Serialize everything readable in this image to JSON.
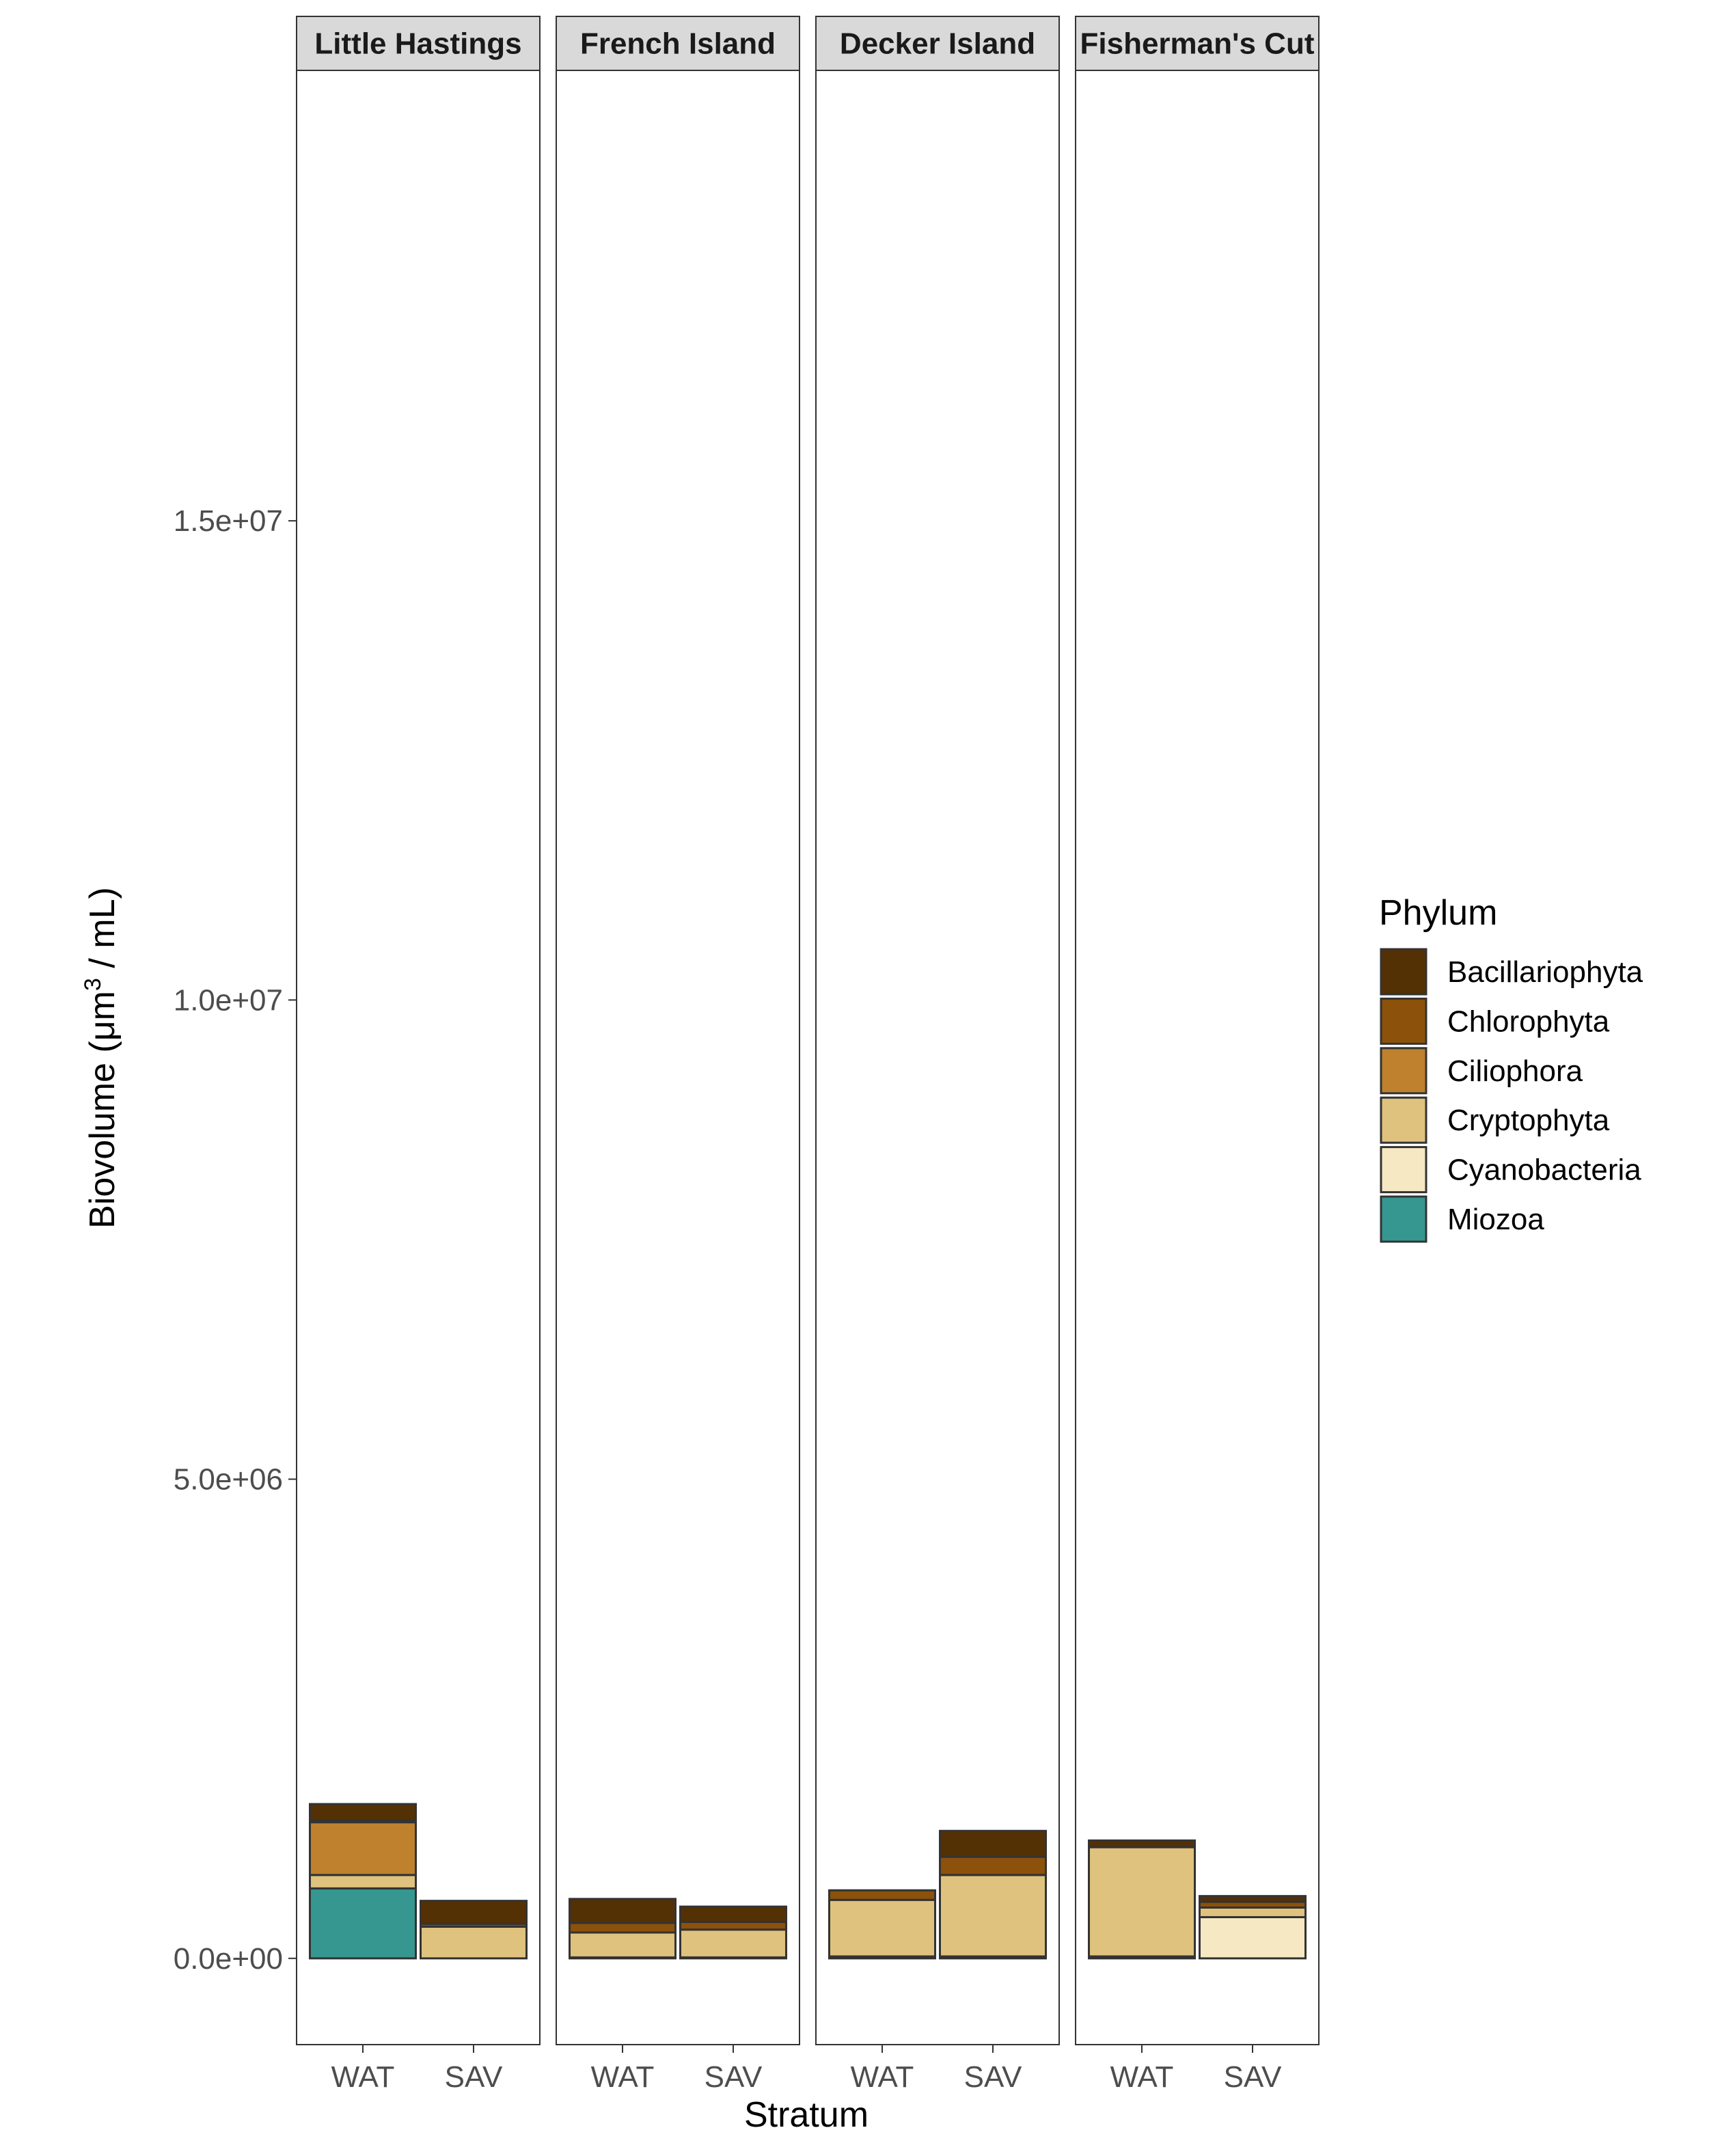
{
  "chart_data": {
    "type": "bar",
    "stacked": true,
    "facets": [
      "Little Hastings",
      "French Island",
      "Decker Island",
      "Fisherman's Cut"
    ],
    "categories": [
      "WAT",
      "SAV"
    ],
    "xlabel": "Stratum",
    "ylabel_main": "Biovolume (",
    "ylabel_mu": "μ",
    "ylabel_m": "m",
    "ylabel_sup": "3",
    "ylabel_tail": " / mL)",
    "ylim": [
      -900000,
      19700000
    ],
    "yticks": [
      0,
      5000000,
      10000000,
      15000000
    ],
    "ytick_labels": [
      "0.0e+00",
      "5.0e+06",
      "1.0e+07",
      "1.5e+07"
    ],
    "grid": false,
    "legend": {
      "title": "Phylum",
      "placement": "right",
      "entries": [
        "Bacillariophyta",
        "Chlorophyta",
        "Ciliophora",
        "Cryptophyta",
        "Cyanobacteria",
        "Miozoa"
      ]
    },
    "colors": {
      "Bacillariophyta": "#543005",
      "Chlorophyta": "#8c510a",
      "Ciliophora": "#bf812d",
      "Cryptophyta": "#dfc27d",
      "Cyanobacteria": "#f6e8c3",
      "Miozoa": "#35978f"
    },
    "bars": [
      {
        "facet": "Little Hastings",
        "stratum": "WAT",
        "segments": [
          {
            "phylum": "Miozoa",
            "value": 730000
          },
          {
            "phylum": "Cryptophyta",
            "value": 140000
          },
          {
            "phylum": "Ciliophora",
            "value": 550000
          },
          {
            "phylum": "Chlorophyta",
            "value": 20000
          },
          {
            "phylum": "Bacillariophyta",
            "value": 170000
          }
        ]
      },
      {
        "facet": "Little Hastings",
        "stratum": "SAV",
        "segments": [
          {
            "phylum": "Cryptophyta",
            "value": 330000
          },
          {
            "phylum": "Chlorophyta",
            "value": 30000
          },
          {
            "phylum": "Bacillariophyta",
            "value": 240000
          }
        ]
      },
      {
        "facet": "French Island",
        "stratum": "WAT",
        "segments": [
          {
            "phylum": "Cyanobacteria",
            "value": 10000
          },
          {
            "phylum": "Cryptophyta",
            "value": 260000
          },
          {
            "phylum": "Chlorophyta",
            "value": 100000
          },
          {
            "phylum": "Bacillariophyta",
            "value": 250000
          }
        ]
      },
      {
        "facet": "French Island",
        "stratum": "SAV",
        "segments": [
          {
            "phylum": "Cyanobacteria",
            "value": 10000
          },
          {
            "phylum": "Cryptophyta",
            "value": 290000
          },
          {
            "phylum": "Chlorophyta",
            "value": 80000
          },
          {
            "phylum": "Bacillariophyta",
            "value": 160000
          }
        ]
      },
      {
        "facet": "Decker Island",
        "stratum": "WAT",
        "segments": [
          {
            "phylum": "Cyanobacteria",
            "value": 20000
          },
          {
            "phylum": "Cryptophyta",
            "value": 590000
          },
          {
            "phylum": "Chlorophyta",
            "value": 100000
          }
        ]
      },
      {
        "facet": "Decker Island",
        "stratum": "SAV",
        "segments": [
          {
            "phylum": "Cyanobacteria",
            "value": 20000
          },
          {
            "phylum": "Cryptophyta",
            "value": 850000
          },
          {
            "phylum": "Chlorophyta",
            "value": 190000
          },
          {
            "phylum": "Bacillariophyta",
            "value": 270000
          }
        ]
      },
      {
        "facet": "Fisherman's Cut",
        "stratum": "WAT",
        "segments": [
          {
            "phylum": "Cyanobacteria",
            "value": 20000
          },
          {
            "phylum": "Cryptophyta",
            "value": 1140000
          },
          {
            "phylum": "Bacillariophyta",
            "value": 70000
          }
        ]
      },
      {
        "facet": "Fisherman's Cut",
        "stratum": "SAV",
        "segments": [
          {
            "phylum": "Cyanobacteria",
            "value": 430000
          },
          {
            "phylum": "Cryptophyta",
            "value": 100000
          },
          {
            "phylum": "Chlorophyta",
            "value": 60000
          },
          {
            "phylum": "Bacillariophyta",
            "value": 60000
          }
        ]
      }
    ]
  }
}
